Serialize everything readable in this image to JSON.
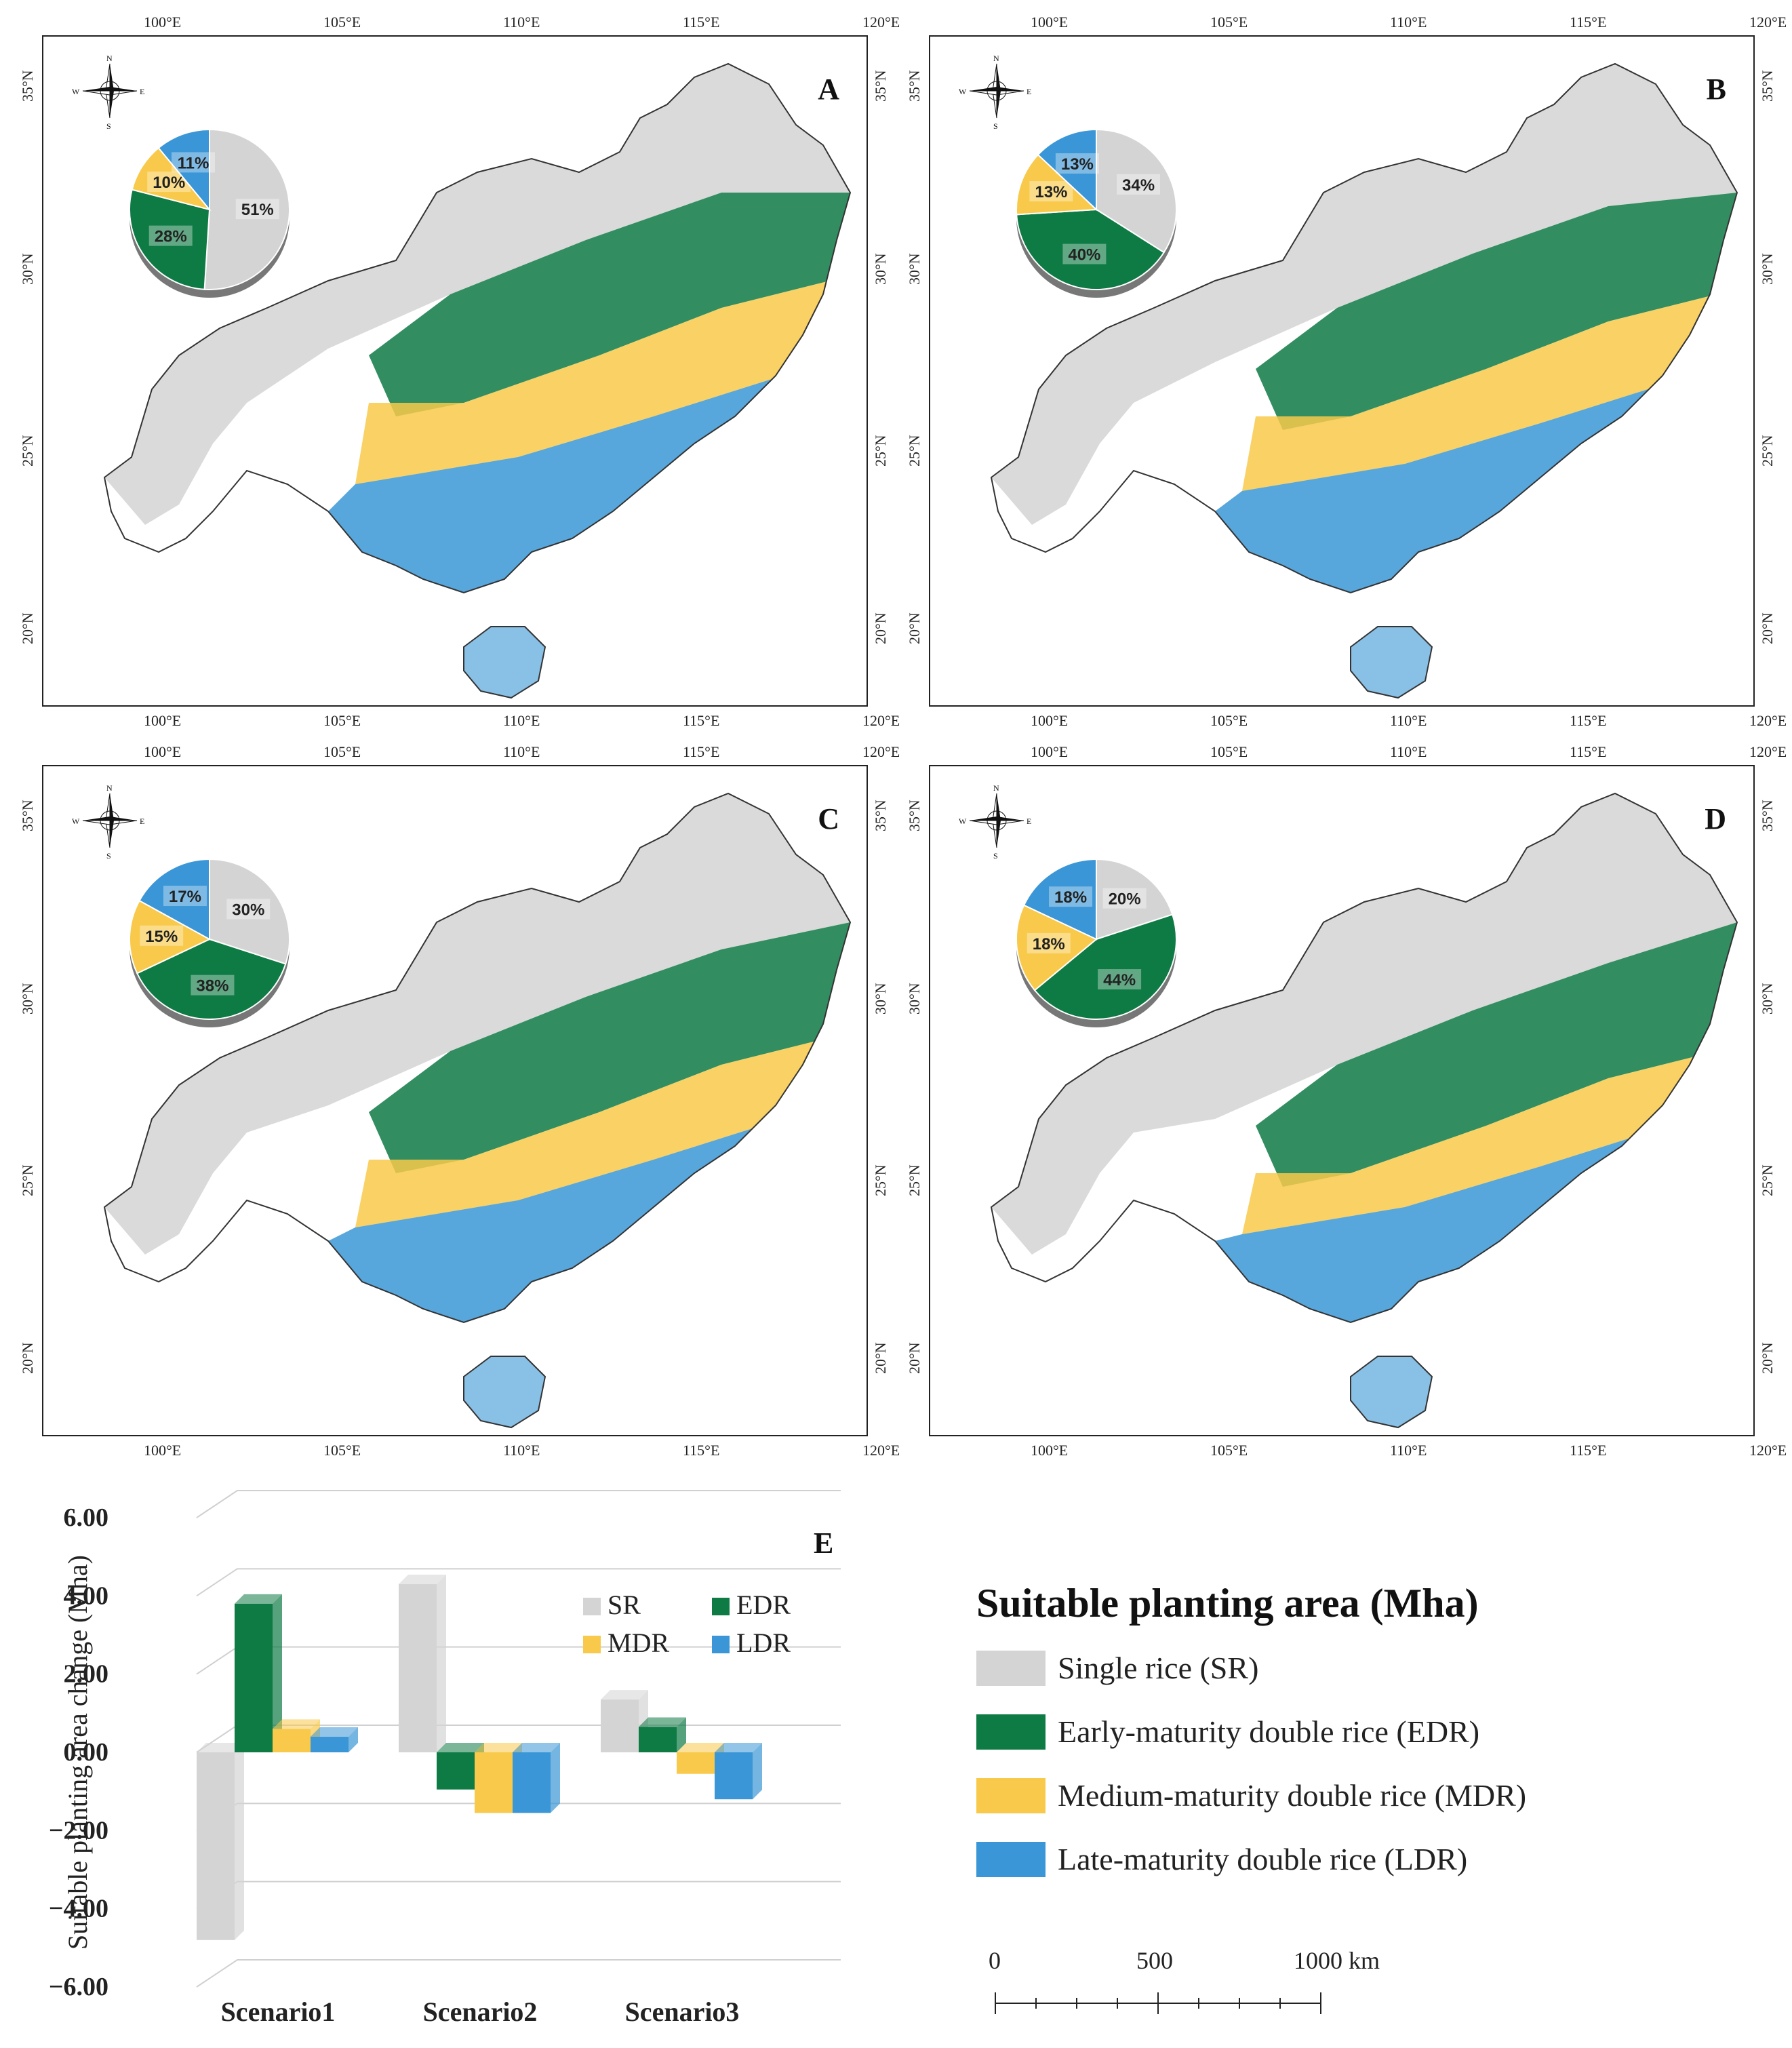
{
  "panels": [
    {
      "id": "A",
      "label": "A",
      "pie": [
        {
          "cat": "SR",
          "pct": 51
        },
        {
          "cat": "EDR",
          "pct": 28
        },
        {
          "cat": "MDR",
          "pct": 10
        },
        {
          "cat": "LDR",
          "pct": 11
        }
      ]
    },
    {
      "id": "B",
      "label": "B",
      "pie": [
        {
          "cat": "SR",
          "pct": 34
        },
        {
          "cat": "EDR",
          "pct": 40
        },
        {
          "cat": "MDR",
          "pct": 13
        },
        {
          "cat": "LDR",
          "pct": 13
        }
      ]
    },
    {
      "id": "C",
      "label": "C",
      "pie": [
        {
          "cat": "SR",
          "pct": 30
        },
        {
          "cat": "EDR",
          "pct": 38
        },
        {
          "cat": "MDR",
          "pct": 15
        },
        {
          "cat": "LDR",
          "pct": 17
        }
      ]
    },
    {
      "id": "D",
      "label": "D",
      "pie": [
        {
          "cat": "SR",
          "pct": 20
        },
        {
          "cat": "EDR",
          "pct": 44
        },
        {
          "cat": "MDR",
          "pct": 18
        },
        {
          "cat": "LDR",
          "pct": 18
        }
      ]
    }
  ],
  "pie_labels": {
    "A": [
      "51%",
      "28%",
      "10%",
      "11%"
    ],
    "B": [
      "34%",
      "40%",
      "13%",
      "13%"
    ],
    "C": [
      "30%",
      "38%",
      "15%",
      "17%"
    ],
    "D": [
      "20%",
      "44%",
      "18%",
      "18%"
    ]
  },
  "map_axes": {
    "lon_ticks": [
      "100°E",
      "105°E",
      "110°E",
      "115°E",
      "120°E"
    ],
    "lat_ticks": [
      "20°N",
      "25°N",
      "30°N",
      "35°N"
    ]
  },
  "compass": {
    "n": "N",
    "s": "S",
    "e": "E",
    "w": "W"
  },
  "colors": {
    "SR": "#d4d4d4",
    "EDR": "#0e7a44",
    "MDR": "#f8c94a",
    "LDR": "#3a96d6"
  },
  "chart_data": {
    "type": "bar",
    "panel_label": "E",
    "categories": [
      "Scenario1",
      "Scenario2",
      "Scenario3"
    ],
    "series": [
      {
        "name": "SR",
        "values": [
          -4.8,
          4.3,
          1.35
        ]
      },
      {
        "name": "EDR",
        "values": [
          3.8,
          -0.95,
          0.65
        ]
      },
      {
        "name": "MDR",
        "values": [
          0.6,
          -1.55,
          -0.55
        ]
      },
      {
        "name": "LDR",
        "values": [
          0.4,
          -1.55,
          -1.2
        ]
      }
    ],
    "ylabel": "Suitable planting area change (Mha)",
    "yticks": [
      "6.00",
      "4.00",
      "2.00",
      "0.00",
      "−2.00",
      "−4.00",
      "−6.00"
    ],
    "ylim": [
      -6,
      6
    ],
    "legend": [
      "SR",
      "EDR",
      "MDR",
      "LDR"
    ]
  },
  "legend": {
    "title": "Suitable planting area (Mha)",
    "items": [
      {
        "key": "SR",
        "label": "Single rice (SR)"
      },
      {
        "key": "EDR",
        "label": "Early-maturity double rice (EDR)"
      },
      {
        "key": "MDR",
        "label": "Medium-maturity double rice (MDR)"
      },
      {
        "key": "LDR",
        "label": "Late-maturity double rice (LDR)"
      }
    ]
  },
  "scale_bar": {
    "labels": [
      "0",
      "500",
      "1000 km"
    ]
  }
}
